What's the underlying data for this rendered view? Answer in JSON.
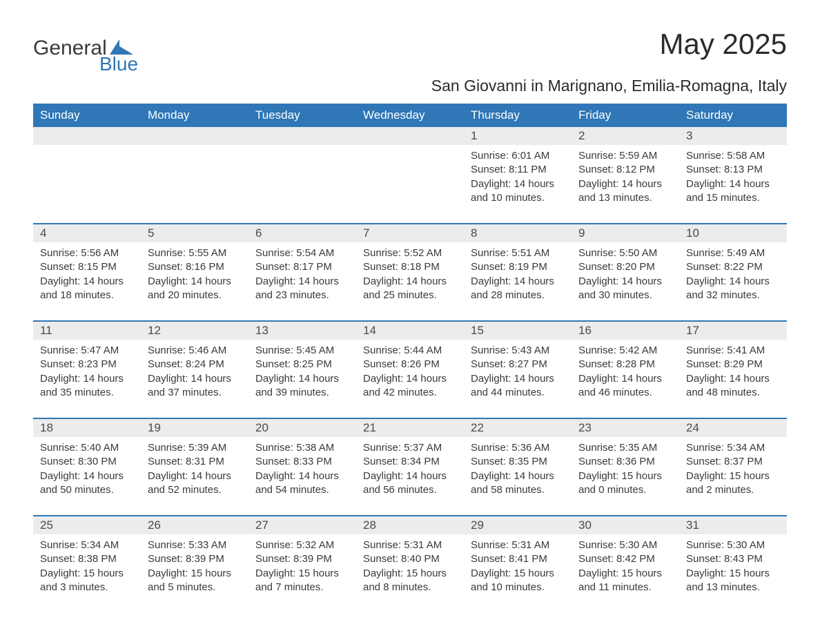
{
  "brand": {
    "top": "General",
    "bottom": "Blue",
    "mark_color": "#2f77b6"
  },
  "title": "May 2025",
  "subtitle": "San Giovanni in Marignano, Emilia-Romagna, Italy",
  "colors": {
    "header_bg": "#2f77b6",
    "header_text": "#ffffff",
    "daynum_bg": "#ececec",
    "text": "#3a3a3a",
    "rule": "#2f77b6",
    "background": "#ffffff"
  },
  "typography": {
    "title_fontsize": 42,
    "subtitle_fontsize": 23,
    "header_fontsize": 17,
    "daynum_fontsize": 17,
    "body_fontsize": 15,
    "logo_fontsize": 30
  },
  "layout": {
    "columns": 7,
    "rows": 5
  },
  "weekdays": [
    "Sunday",
    "Monday",
    "Tuesday",
    "Wednesday",
    "Thursday",
    "Friday",
    "Saturday"
  ],
  "weeks": [
    [
      {
        "day": "",
        "sunrise": "",
        "sunset": "",
        "daylight": ""
      },
      {
        "day": "",
        "sunrise": "",
        "sunset": "",
        "daylight": ""
      },
      {
        "day": "",
        "sunrise": "",
        "sunset": "",
        "daylight": ""
      },
      {
        "day": "",
        "sunrise": "",
        "sunset": "",
        "daylight": ""
      },
      {
        "day": "1",
        "sunrise": "Sunrise: 6:01 AM",
        "sunset": "Sunset: 8:11 PM",
        "daylight": "Daylight: 14 hours and 10 minutes."
      },
      {
        "day": "2",
        "sunrise": "Sunrise: 5:59 AM",
        "sunset": "Sunset: 8:12 PM",
        "daylight": "Daylight: 14 hours and 13 minutes."
      },
      {
        "day": "3",
        "sunrise": "Sunrise: 5:58 AM",
        "sunset": "Sunset: 8:13 PM",
        "daylight": "Daylight: 14 hours and 15 minutes."
      }
    ],
    [
      {
        "day": "4",
        "sunrise": "Sunrise: 5:56 AM",
        "sunset": "Sunset: 8:15 PM",
        "daylight": "Daylight: 14 hours and 18 minutes."
      },
      {
        "day": "5",
        "sunrise": "Sunrise: 5:55 AM",
        "sunset": "Sunset: 8:16 PM",
        "daylight": "Daylight: 14 hours and 20 minutes."
      },
      {
        "day": "6",
        "sunrise": "Sunrise: 5:54 AM",
        "sunset": "Sunset: 8:17 PM",
        "daylight": "Daylight: 14 hours and 23 minutes."
      },
      {
        "day": "7",
        "sunrise": "Sunrise: 5:52 AM",
        "sunset": "Sunset: 8:18 PM",
        "daylight": "Daylight: 14 hours and 25 minutes."
      },
      {
        "day": "8",
        "sunrise": "Sunrise: 5:51 AM",
        "sunset": "Sunset: 8:19 PM",
        "daylight": "Daylight: 14 hours and 28 minutes."
      },
      {
        "day": "9",
        "sunrise": "Sunrise: 5:50 AM",
        "sunset": "Sunset: 8:20 PM",
        "daylight": "Daylight: 14 hours and 30 minutes."
      },
      {
        "day": "10",
        "sunrise": "Sunrise: 5:49 AM",
        "sunset": "Sunset: 8:22 PM",
        "daylight": "Daylight: 14 hours and 32 minutes."
      }
    ],
    [
      {
        "day": "11",
        "sunrise": "Sunrise: 5:47 AM",
        "sunset": "Sunset: 8:23 PM",
        "daylight": "Daylight: 14 hours and 35 minutes."
      },
      {
        "day": "12",
        "sunrise": "Sunrise: 5:46 AM",
        "sunset": "Sunset: 8:24 PM",
        "daylight": "Daylight: 14 hours and 37 minutes."
      },
      {
        "day": "13",
        "sunrise": "Sunrise: 5:45 AM",
        "sunset": "Sunset: 8:25 PM",
        "daylight": "Daylight: 14 hours and 39 minutes."
      },
      {
        "day": "14",
        "sunrise": "Sunrise: 5:44 AM",
        "sunset": "Sunset: 8:26 PM",
        "daylight": "Daylight: 14 hours and 42 minutes."
      },
      {
        "day": "15",
        "sunrise": "Sunrise: 5:43 AM",
        "sunset": "Sunset: 8:27 PM",
        "daylight": "Daylight: 14 hours and 44 minutes."
      },
      {
        "day": "16",
        "sunrise": "Sunrise: 5:42 AM",
        "sunset": "Sunset: 8:28 PM",
        "daylight": "Daylight: 14 hours and 46 minutes."
      },
      {
        "day": "17",
        "sunrise": "Sunrise: 5:41 AM",
        "sunset": "Sunset: 8:29 PM",
        "daylight": "Daylight: 14 hours and 48 minutes."
      }
    ],
    [
      {
        "day": "18",
        "sunrise": "Sunrise: 5:40 AM",
        "sunset": "Sunset: 8:30 PM",
        "daylight": "Daylight: 14 hours and 50 minutes."
      },
      {
        "day": "19",
        "sunrise": "Sunrise: 5:39 AM",
        "sunset": "Sunset: 8:31 PM",
        "daylight": "Daylight: 14 hours and 52 minutes."
      },
      {
        "day": "20",
        "sunrise": "Sunrise: 5:38 AM",
        "sunset": "Sunset: 8:33 PM",
        "daylight": "Daylight: 14 hours and 54 minutes."
      },
      {
        "day": "21",
        "sunrise": "Sunrise: 5:37 AM",
        "sunset": "Sunset: 8:34 PM",
        "daylight": "Daylight: 14 hours and 56 minutes."
      },
      {
        "day": "22",
        "sunrise": "Sunrise: 5:36 AM",
        "sunset": "Sunset: 8:35 PM",
        "daylight": "Daylight: 14 hours and 58 minutes."
      },
      {
        "day": "23",
        "sunrise": "Sunrise: 5:35 AM",
        "sunset": "Sunset: 8:36 PM",
        "daylight": "Daylight: 15 hours and 0 minutes."
      },
      {
        "day": "24",
        "sunrise": "Sunrise: 5:34 AM",
        "sunset": "Sunset: 8:37 PM",
        "daylight": "Daylight: 15 hours and 2 minutes."
      }
    ],
    [
      {
        "day": "25",
        "sunrise": "Sunrise: 5:34 AM",
        "sunset": "Sunset: 8:38 PM",
        "daylight": "Daylight: 15 hours and 3 minutes."
      },
      {
        "day": "26",
        "sunrise": "Sunrise: 5:33 AM",
        "sunset": "Sunset: 8:39 PM",
        "daylight": "Daylight: 15 hours and 5 minutes."
      },
      {
        "day": "27",
        "sunrise": "Sunrise: 5:32 AM",
        "sunset": "Sunset: 8:39 PM",
        "daylight": "Daylight: 15 hours and 7 minutes."
      },
      {
        "day": "28",
        "sunrise": "Sunrise: 5:31 AM",
        "sunset": "Sunset: 8:40 PM",
        "daylight": "Daylight: 15 hours and 8 minutes."
      },
      {
        "day": "29",
        "sunrise": "Sunrise: 5:31 AM",
        "sunset": "Sunset: 8:41 PM",
        "daylight": "Daylight: 15 hours and 10 minutes."
      },
      {
        "day": "30",
        "sunrise": "Sunrise: 5:30 AM",
        "sunset": "Sunset: 8:42 PM",
        "daylight": "Daylight: 15 hours and 11 minutes."
      },
      {
        "day": "31",
        "sunrise": "Sunrise: 5:30 AM",
        "sunset": "Sunset: 8:43 PM",
        "daylight": "Daylight: 15 hours and 13 minutes."
      }
    ]
  ]
}
